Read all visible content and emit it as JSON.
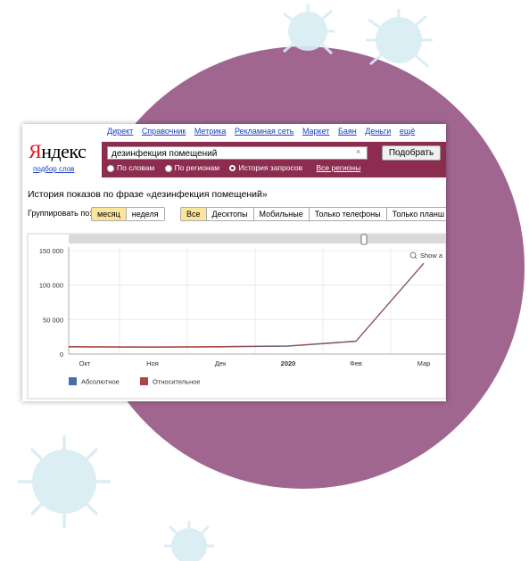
{
  "topnav": {
    "links": [
      "Директ",
      "Справочник",
      "Метрика",
      "Рекламная сеть",
      "Маркет",
      "Баян",
      "Деньги",
      "ещё"
    ]
  },
  "logo": {
    "first_letter": "Я",
    "rest": "ндекс",
    "sub": "подбор слов"
  },
  "search": {
    "value": "дезинфекция помещений",
    "clear": "×",
    "button": "Подобрать"
  },
  "modes": {
    "options": [
      "По словам",
      "По регионам",
      "История запросов"
    ],
    "selected_index": 2,
    "regions_link": "Все регионы"
  },
  "page": {
    "heading": "История показов по фразе «дезинфекция помещений»"
  },
  "grouping": {
    "label": "Группировать по:",
    "options": [
      "месяц",
      "неделя"
    ],
    "selected_index": 0
  },
  "devices": {
    "options": [
      "Все",
      "Десктопы",
      "Мобильные",
      "Только телефоны",
      "Только планш"
    ],
    "selected_index": 0
  },
  "colors": {
    "accent": "#8c2c4e",
    "absolute": "#4572a7",
    "relative": "#aa4643",
    "active_tab": "#fbe59b",
    "link": "#1a3dc1"
  },
  "chart_data": {
    "type": "line",
    "categories": [
      "Окт",
      "Ноя",
      "Дек",
      "2020",
      "Фев",
      "Мар"
    ],
    "series": [
      {
        "name": "Абсолютное",
        "color": "#4572a7",
        "values": [
          11000,
          10500,
          11000,
          12000,
          19000,
          132000
        ]
      },
      {
        "name": "Относительное",
        "color": "#aa4643",
        "values": [
          11000,
          10500,
          11000,
          12000,
          19000,
          132000
        ]
      }
    ],
    "y_ticks": [
      "0",
      "50 000",
      "100 000",
      "150 000"
    ],
    "ylim": [
      0,
      150000
    ],
    "grid": true,
    "legend": "bottom-left",
    "show_all_label": "Show a"
  }
}
